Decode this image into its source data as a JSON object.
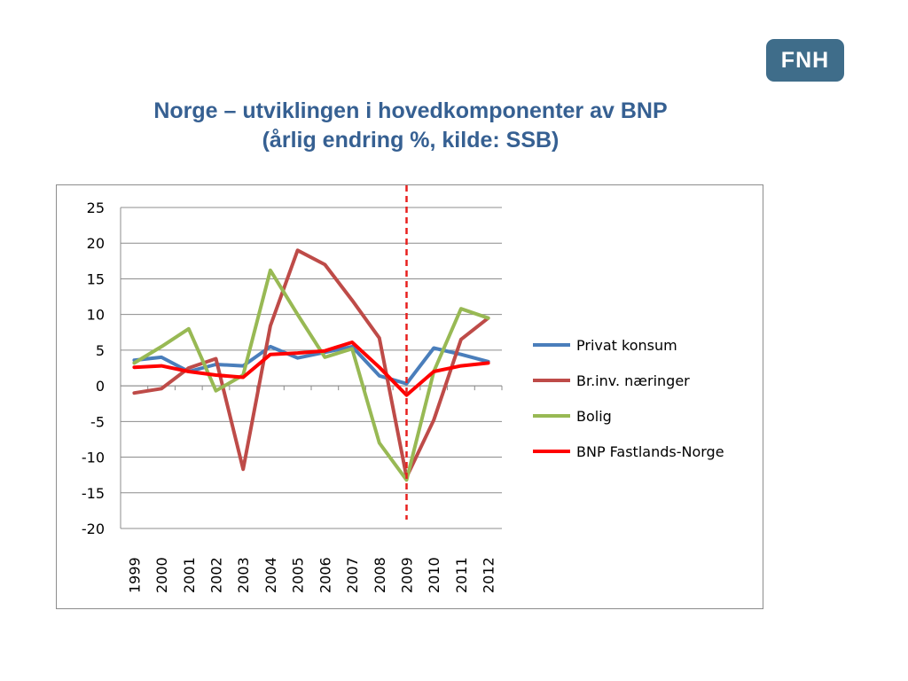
{
  "slide": {
    "logo_text": "FNH",
    "title_line1": "Norge – utviklingen i hovedkomponenter av BNP",
    "title_line2": "(årlig endring %, kilde: SSB)"
  },
  "colors": {
    "title": "#366092",
    "logo_bg": "#3f6d8a",
    "gridline": "#8c8c8c",
    "marker_line": "#e8201f"
  },
  "chart_data": {
    "type": "line",
    "categories": [
      "1999",
      "2000",
      "2001",
      "2002",
      "2003",
      "2004",
      "2005",
      "2006",
      "2007",
      "2008",
      "2009",
      "2010",
      "2011",
      "2012"
    ],
    "ylim": [
      -20,
      25
    ],
    "yticks": [
      25,
      20,
      15,
      10,
      5,
      0,
      -5,
      -10,
      -15,
      -20
    ],
    "grid": true,
    "legend_position": "right",
    "vertical_marker": {
      "category": "2009",
      "style": "dashed"
    },
    "series": [
      {
        "name": "Privat konsum",
        "color": "#4a7ebb",
        "values": [
          3.6,
          4.0,
          2.0,
          3.0,
          2.8,
          5.5,
          3.9,
          4.7,
          5.5,
          1.4,
          0.3,
          5.3,
          4.4,
          3.4
        ]
      },
      {
        "name": "Br.inv. næringer",
        "color": "#be4b48",
        "values": [
          -1.0,
          -0.4,
          2.5,
          3.8,
          -11.7,
          8.4,
          19.0,
          17.0,
          12.0,
          6.7,
          -12.8,
          -4.8,
          6.5,
          9.5
        ]
      },
      {
        "name": "Bolig",
        "color": "#98b954",
        "values": [
          3.2,
          5.5,
          8.0,
          -0.7,
          1.5,
          16.2,
          10.0,
          4.0,
          5.2,
          -8.0,
          -13.2,
          2.0,
          10.8,
          9.5
        ]
      },
      {
        "name": "BNP Fastlands-Norge",
        "color": "#ff0000",
        "values": [
          2.6,
          2.8,
          2.0,
          1.5,
          1.2,
          4.4,
          4.6,
          4.9,
          6.1,
          2.6,
          -1.3,
          2.0,
          2.8,
          3.2
        ]
      }
    ]
  }
}
